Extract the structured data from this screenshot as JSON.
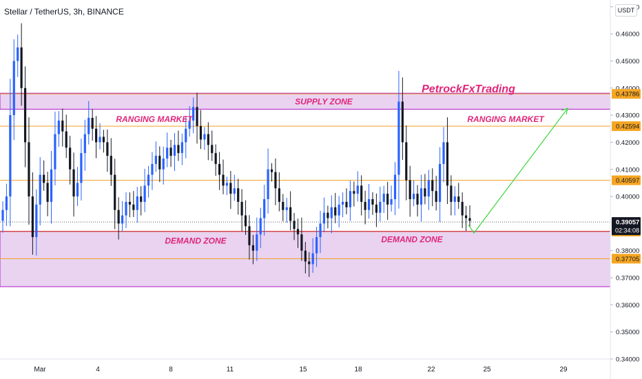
{
  "header": {
    "title": "Stellar / TetherUS, 3h, BINANCE"
  },
  "currency_button": "USDT",
  "watermark": "PetrockFxTrading",
  "colors": {
    "up": "#2962ff",
    "down": "#131722",
    "zone_fill": "#e9d3f0",
    "zone_border": "#b01cc7",
    "level": "#f0a020",
    "demand_top": "#d42a2a",
    "zone_text": "#e0257a",
    "arrow": "#3fd43f",
    "badge_bg": "#f5a623",
    "price_badge_bg": "#131722"
  },
  "chart_data": {
    "type": "candlestick",
    "title": "Stellar / TetherUS, 3h, BINANCE",
    "y_axis": {
      "range": [
        0.34,
        0.4725
      ],
      "tick_labels": [
        "0.47000",
        "0.46000",
        "0.45000",
        "0.44000",
        "0.43000",
        "0.42000",
        "0.41000",
        "0.40000",
        "0.38000",
        "0.37000",
        "0.36000",
        "0.35000",
        "0.34000"
      ]
    },
    "x_axis": {
      "tick_labels": [
        "Mar",
        "4",
        "8",
        "11",
        "15",
        "18",
        "22",
        "25",
        "29"
      ]
    },
    "levels": [
      {
        "value": 0.43786,
        "label": "0.43786"
      },
      {
        "value": 0.42594,
        "label": "0.42594"
      },
      {
        "value": 0.40597,
        "label": "0.40597"
      },
      {
        "value": 0.38705,
        "label": "0.38705"
      },
      {
        "value": 0.37705,
        "label": "0.37705"
      }
    ],
    "current_price": {
      "value": 0.39057,
      "label": "0.39057",
      "countdown": "02:34:08"
    },
    "zones": [
      {
        "name": "SUPPLY ZONE",
        "from": 0.4322,
        "to": 0.4381
      },
      {
        "name": "DEMAND ZONE",
        "from": 0.3667,
        "to": 0.3871
      }
    ],
    "annotations": [
      {
        "text": "RANGING MARKET",
        "near": "upper-left"
      },
      {
        "text": "RANGING MARKET",
        "near": "upper-right"
      },
      {
        "text": "DEMAND ZONE",
        "near": "lower-left"
      },
      {
        "text": "DEMAND ZONE",
        "near": "lower-right"
      }
    ],
    "projection": {
      "from": 0.3865,
      "to": 0.4325,
      "direction": "up"
    },
    "price_path": [
      0.395,
      0.4,
      0.43,
      0.45,
      0.455,
      0.44,
      0.42,
      0.4,
      0.385,
      0.397,
      0.408,
      0.405,
      0.398,
      0.41,
      0.423,
      0.428,
      0.424,
      0.418,
      0.41,
      0.4,
      0.405,
      0.416,
      0.423,
      0.429,
      0.425,
      0.42,
      0.422,
      0.42,
      0.415,
      0.408,
      0.395,
      0.39,
      0.393,
      0.398,
      0.397,
      0.395,
      0.4,
      0.398,
      0.404,
      0.408,
      0.412,
      0.415,
      0.41,
      0.414,
      0.418,
      0.415,
      0.419,
      0.416,
      0.42,
      0.425,
      0.428,
      0.433,
      0.426,
      0.421,
      0.423,
      0.419,
      0.416,
      0.412,
      0.408,
      0.404,
      0.405,
      0.401,
      0.403,
      0.398,
      0.393,
      0.389,
      0.382,
      0.38,
      0.386,
      0.392,
      0.399,
      0.41,
      0.409,
      0.403,
      0.398,
      0.395,
      0.396,
      0.391,
      0.388,
      0.386,
      0.38,
      0.376,
      0.375,
      0.379,
      0.385,
      0.39,
      0.394,
      0.392,
      0.396,
      0.393,
      0.397,
      0.398,
      0.396,
      0.402,
      0.401,
      0.404,
      0.398,
      0.395,
      0.399,
      0.397,
      0.394,
      0.398,
      0.401,
      0.397,
      0.399,
      0.408,
      0.435,
      0.42,
      0.406,
      0.399,
      0.401,
      0.397,
      0.403,
      0.4,
      0.406,
      0.402,
      0.398,
      0.412,
      0.42,
      0.404,
      0.398,
      0.4,
      0.398,
      0.393,
      0.392,
      0.391
    ]
  }
}
